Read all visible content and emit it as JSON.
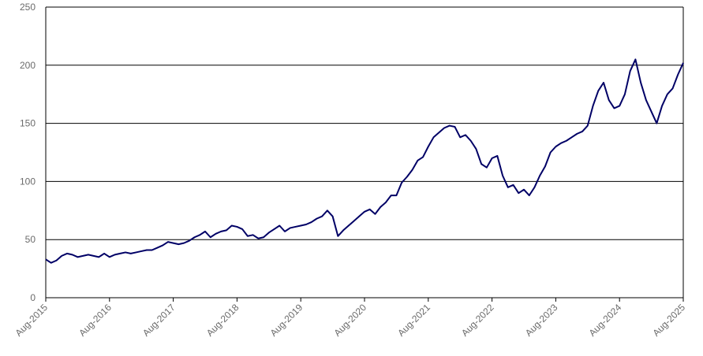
{
  "chart_data": {
    "type": "line",
    "title": "",
    "xlabel": "",
    "ylabel": "",
    "xlim": [
      "Aug-2015",
      "Aug-2025"
    ],
    "ylim": [
      0,
      250
    ],
    "grid": "horizontal",
    "y_ticks": [
      0,
      50,
      100,
      150,
      200,
      250
    ],
    "x_ticks": [
      "Aug-2015",
      "Aug-2016",
      "Aug-2017",
      "Aug-2018",
      "Aug-2019",
      "Aug-2020",
      "Aug-2021",
      "Aug-2022",
      "Aug-2023",
      "Aug-2024",
      "Aug-2025"
    ],
    "line_color": "#000066",
    "series": [
      {
        "x": [
          "2015-08",
          "2015-09",
          "2015-10",
          "2015-11",
          "2015-12",
          "2016-01",
          "2016-02",
          "2016-03",
          "2016-04",
          "2016-05",
          "2016-06",
          "2016-07",
          "2016-08",
          "2016-09",
          "2016-10",
          "2016-11",
          "2016-12",
          "2017-01",
          "2017-02",
          "2017-03",
          "2017-04",
          "2017-05",
          "2017-06",
          "2017-07",
          "2017-08",
          "2017-09",
          "2017-10",
          "2017-11",
          "2017-12",
          "2018-01",
          "2018-02",
          "2018-03",
          "2018-04",
          "2018-05",
          "2018-06",
          "2018-07",
          "2018-08",
          "2018-09",
          "2018-10",
          "2018-11",
          "2018-12",
          "2019-01",
          "2019-02",
          "2019-03",
          "2019-04",
          "2019-05",
          "2019-06",
          "2019-07",
          "2019-08",
          "2019-09",
          "2019-10",
          "2019-11",
          "2019-12",
          "2020-01",
          "2020-02",
          "2020-03",
          "2020-04",
          "2020-05",
          "2020-06",
          "2020-07",
          "2020-08",
          "2020-09",
          "2020-10",
          "2020-11",
          "2020-12",
          "2021-01",
          "2021-02",
          "2021-03",
          "2021-04",
          "2021-05",
          "2021-06",
          "2021-07",
          "2021-08",
          "2021-09",
          "2021-10",
          "2021-11",
          "2021-12",
          "2022-01",
          "2022-02",
          "2022-03",
          "2022-04",
          "2022-05",
          "2022-06",
          "2022-07",
          "2022-08",
          "2022-09",
          "2022-10",
          "2022-11",
          "2022-12",
          "2023-01",
          "2023-02",
          "2023-03",
          "2023-04",
          "2023-05",
          "2023-06",
          "2023-07",
          "2023-08",
          "2023-09",
          "2023-10",
          "2023-11",
          "2023-12",
          "2024-01",
          "2024-02",
          "2024-03",
          "2024-04",
          "2024-05",
          "2024-06",
          "2024-07",
          "2024-08",
          "2024-09",
          "2024-10",
          "2024-11",
          "2024-12",
          "2025-01",
          "2025-02",
          "2025-03",
          "2025-04",
          "2025-05",
          "2025-06",
          "2025-07",
          "2025-08"
        ],
        "values": [
          33,
          30,
          32,
          36,
          38,
          37,
          35,
          36,
          37,
          36,
          35,
          38,
          35,
          37,
          38,
          39,
          38,
          39,
          40,
          41,
          41,
          43,
          45,
          48,
          47,
          46,
          47,
          49,
          52,
          54,
          57,
          52,
          55,
          57,
          58,
          62,
          61,
          59,
          53,
          54,
          51,
          52,
          56,
          59,
          62,
          57,
          60,
          61,
          62,
          63,
          65,
          68,
          70,
          75,
          70,
          53,
          58,
          62,
          66,
          70,
          74,
          76,
          72,
          78,
          82,
          88,
          88,
          99,
          104,
          110,
          118,
          121,
          130,
          138,
          142,
          146,
          148,
          147,
          138,
          140,
          135,
          128,
          115,
          112,
          120,
          122,
          105,
          95,
          97,
          90,
          93,
          88,
          95,
          105,
          113,
          125,
          130,
          133,
          135,
          138,
          141,
          143,
          148,
          165,
          178,
          185,
          170,
          163,
          165,
          175,
          195,
          205,
          185,
          170,
          160,
          150,
          165,
          175,
          180,
          192,
          202
        ]
      }
    ]
  }
}
